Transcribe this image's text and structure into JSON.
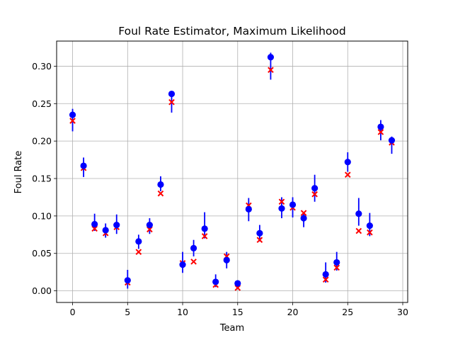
{
  "chart_data": {
    "type": "scatter",
    "title": "Foul Rate Estimator, Maximum Likelihood",
    "xlabel": "Team",
    "ylabel": "Foul Rate",
    "xlim": [
      -1.45,
      30.45
    ],
    "ylim": [
      -0.0155,
      0.3335
    ],
    "xticks": [
      0,
      5,
      10,
      15,
      20,
      25,
      30
    ],
    "yticks": [
      0.0,
      0.05,
      0.1,
      0.15,
      0.2,
      0.25,
      0.3
    ],
    "xtick_labels": [
      "0",
      "5",
      "10",
      "15",
      "20",
      "25",
      "30"
    ],
    "ytick_labels": [
      "0.00",
      "0.05",
      "0.10",
      "0.15",
      "0.20",
      "0.25",
      "0.30"
    ],
    "grid": true,
    "colors": {
      "estimate": "#0000ff",
      "errorbar": "#0000ff",
      "true_value": "#ff0000"
    },
    "x": [
      0,
      1,
      2,
      3,
      4,
      5,
      6,
      7,
      8,
      9,
      10,
      11,
      12,
      13,
      14,
      15,
      16,
      17,
      18,
      19,
      20,
      21,
      22,
      23,
      24,
      25,
      26,
      27,
      28,
      29
    ],
    "estimate": [
      0.235,
      0.167,
      0.089,
      0.081,
      0.088,
      0.014,
      0.066,
      0.088,
      0.142,
      0.263,
      0.035,
      0.057,
      0.083,
      0.012,
      0.041,
      0.01,
      0.109,
      0.077,
      0.312,
      0.11,
      0.115,
      0.097,
      0.137,
      0.022,
      0.038,
      0.172,
      0.103,
      0.087,
      0.219,
      0.201
    ],
    "error_low": [
      0.213,
      0.152,
      0.08,
      0.071,
      0.076,
      0.003,
      0.056,
      0.076,
      0.133,
      0.238,
      0.024,
      0.046,
      0.07,
      0.005,
      0.03,
      0.005,
      0.093,
      0.066,
      0.282,
      0.097,
      0.098,
      0.085,
      0.119,
      0.011,
      0.027,
      0.159,
      0.087,
      0.073,
      0.201,
      0.183
    ],
    "error_high": [
      0.243,
      0.178,
      0.103,
      0.09,
      0.102,
      0.028,
      0.075,
      0.097,
      0.153,
      0.266,
      0.052,
      0.068,
      0.105,
      0.022,
      0.052,
      0.014,
      0.124,
      0.088,
      0.318,
      0.125,
      0.125,
      0.105,
      0.155,
      0.038,
      0.052,
      0.185,
      0.124,
      0.104,
      0.228,
      0.206
    ],
    "true_value": [
      0.227,
      0.164,
      0.083,
      0.077,
      0.085,
      0.011,
      0.052,
      0.082,
      0.13,
      0.252,
      0.037,
      0.039,
      0.073,
      0.008,
      0.046,
      0.004,
      0.114,
      0.068,
      0.295,
      0.119,
      0.111,
      0.104,
      0.129,
      0.015,
      0.031,
      0.155,
      0.08,
      0.078,
      0.212,
      0.198
    ]
  }
}
